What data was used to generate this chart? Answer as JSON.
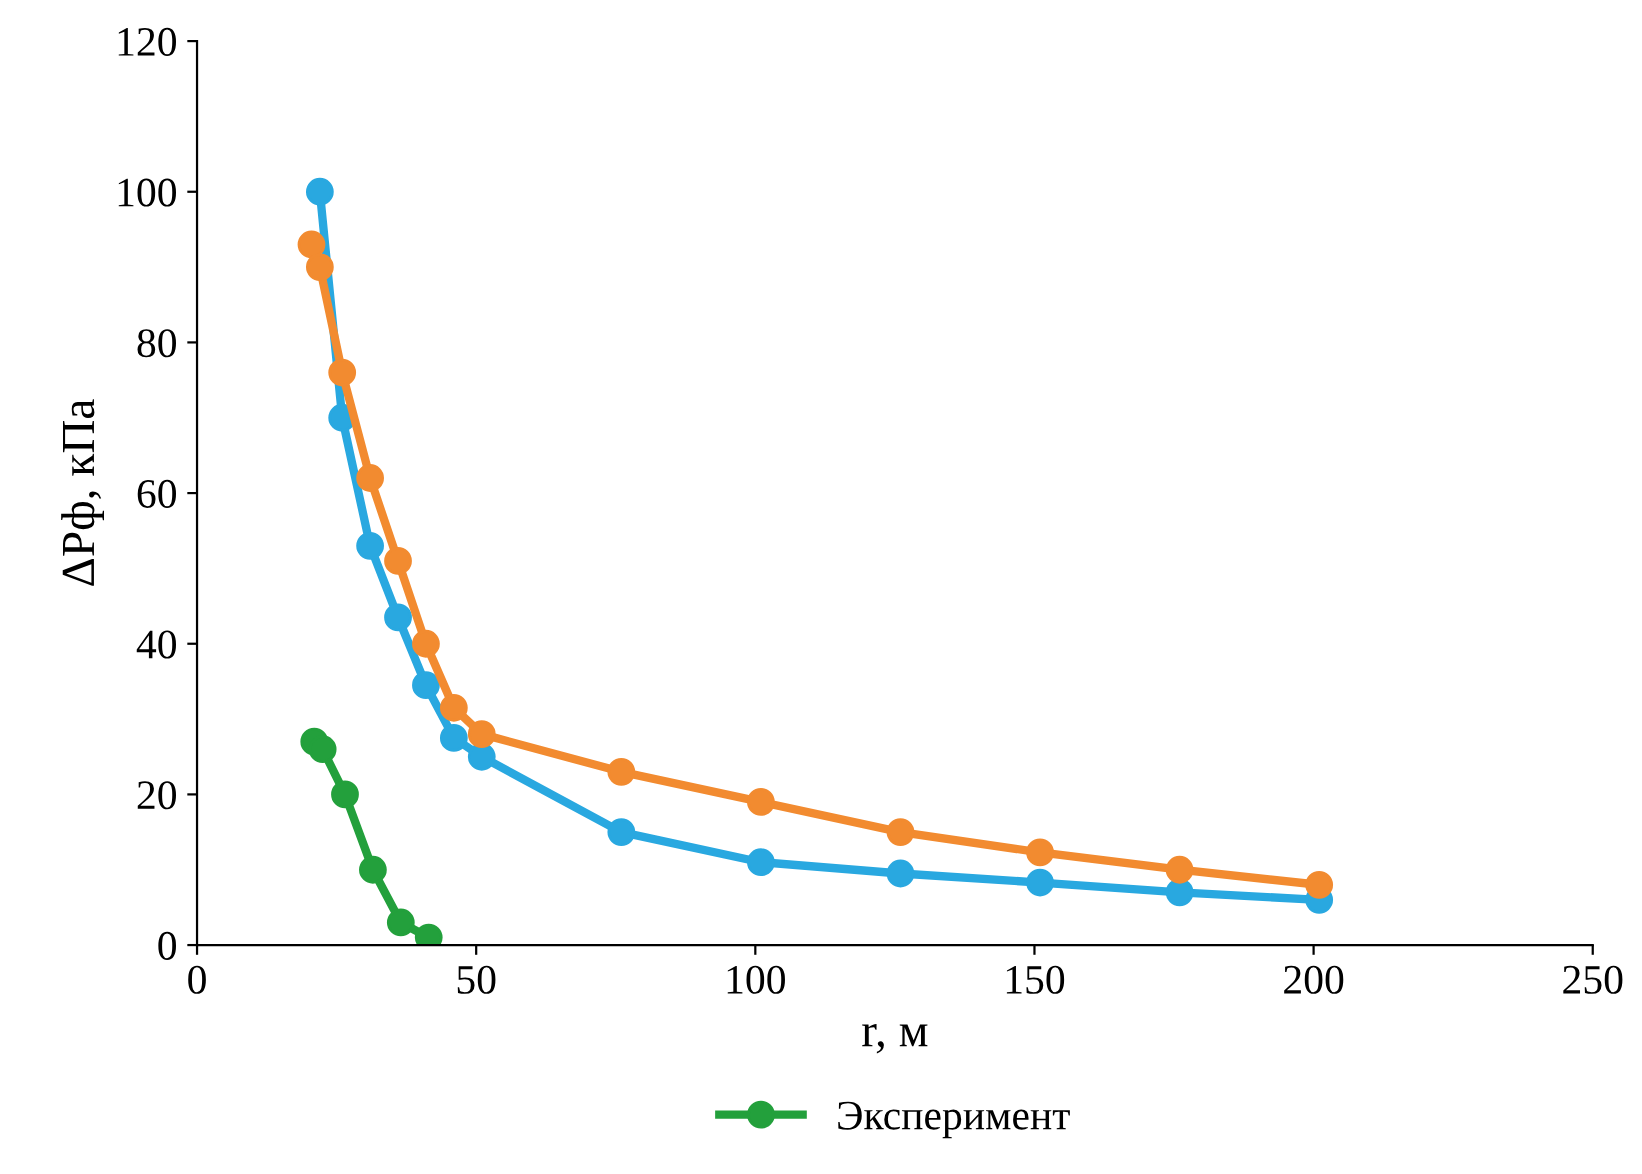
{
  "chart_data": {
    "type": "line",
    "xlabel": "r, м",
    "ylabel": "ΔPф, кПа",
    "xlim": [
      0,
      250
    ],
    "xticks": [
      0,
      50,
      100,
      150,
      200,
      250
    ],
    "ylim": [
      0,
      120
    ],
    "yticks": [
      0,
      20,
      40,
      60,
      80,
      100,
      120
    ],
    "grid": false,
    "legend": "bottom",
    "marker": "circle",
    "line_style": "solid",
    "series": [
      {
        "color": "#29a8e0",
        "x": [
          22,
          26,
          31,
          36,
          41,
          46,
          51,
          76,
          101,
          126,
          151,
          176,
          201
        ],
        "values": [
          100,
          70,
          53,
          43.5,
          34.5,
          27.5,
          25,
          15,
          11,
          9.5,
          8.3,
          7,
          6
        ]
      },
      {
        "color": "#f28b30",
        "x": [
          20.5,
          22,
          26,
          31,
          36,
          41,
          46,
          51,
          76,
          101,
          126,
          151,
          176,
          201
        ],
        "values": [
          93,
          90,
          76,
          62,
          51,
          40,
          31.5,
          28,
          23,
          19,
          15,
          12.3,
          10,
          8
        ]
      },
      {
        "name": "Эксперимент",
        "color": "#23a03c",
        "x": [
          21,
          22.5,
          26.5,
          31.5,
          36.5,
          41.5
        ],
        "values": [
          27,
          26,
          20,
          10,
          3,
          1
        ]
      }
    ]
  }
}
